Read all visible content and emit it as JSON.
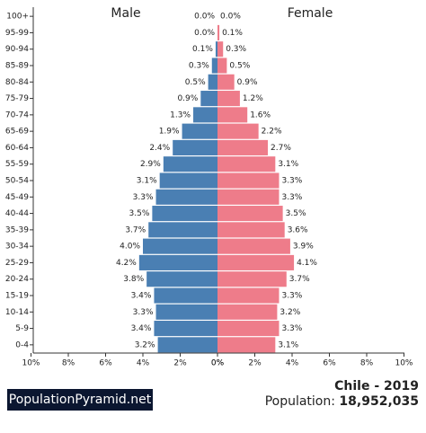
{
  "chart_data": {
    "type": "pyramid",
    "title": "Chile - 2019",
    "categories": [
      "100+",
      "95-99",
      "90-94",
      "85-89",
      "80-84",
      "75-79",
      "70-74",
      "65-69",
      "60-64",
      "55-59",
      "50-54",
      "45-49",
      "40-44",
      "35-39",
      "30-34",
      "25-29",
      "20-24",
      "15-19",
      "10-14",
      "5-9",
      "0-4"
    ],
    "series": [
      {
        "name": "Male",
        "color": "#4a7fb3",
        "values": [
          0.0,
          0.0,
          0.1,
          0.3,
          0.5,
          0.9,
          1.3,
          1.9,
          2.4,
          2.9,
          3.1,
          3.3,
          3.5,
          3.7,
          4.0,
          4.2,
          3.8,
          3.4,
          3.3,
          3.4,
          3.2
        ],
        "value_labels": [
          "0.0%",
          "0.0%",
          "0.1%",
          "0.3%",
          "0.5%",
          "0.9%",
          "1.3%",
          "1.9%",
          "2.4%",
          "2.9%",
          "3.1%",
          "3.3%",
          "3.5%",
          "3.7%",
          "4.0%",
          "4.2%",
          "3.8%",
          "3.4%",
          "3.3%",
          "3.4%",
          "3.2%"
        ]
      },
      {
        "name": "Female",
        "color": "#ee7c8a",
        "values": [
          0.0,
          0.1,
          0.3,
          0.5,
          0.9,
          1.2,
          1.6,
          2.2,
          2.7,
          3.1,
          3.3,
          3.3,
          3.5,
          3.6,
          3.9,
          4.1,
          3.7,
          3.3,
          3.2,
          3.3,
          3.1
        ],
        "value_labels": [
          "0.0%",
          "0.1%",
          "0.3%",
          "0.5%",
          "0.9%",
          "1.2%",
          "1.6%",
          "2.2%",
          "2.7%",
          "3.1%",
          "3.3%",
          "3.3%",
          "3.5%",
          "3.6%",
          "3.9%",
          "4.1%",
          "3.7%",
          "3.3%",
          "3.2%",
          "3.3%",
          "3.1%"
        ]
      }
    ],
    "xlim": [
      0,
      10
    ],
    "xticks": [
      {
        "value": 0,
        "label": "0%"
      },
      {
        "value": 2,
        "label": "2%"
      },
      {
        "value": 4,
        "label": "4%"
      },
      {
        "value": 6,
        "label": "6%"
      },
      {
        "value": 8,
        "label": "8%"
      },
      {
        "value": 10,
        "label": "10%"
      }
    ],
    "source": "PopulationPyramid.net",
    "population_label": "Population:",
    "population": "18,952,035"
  }
}
